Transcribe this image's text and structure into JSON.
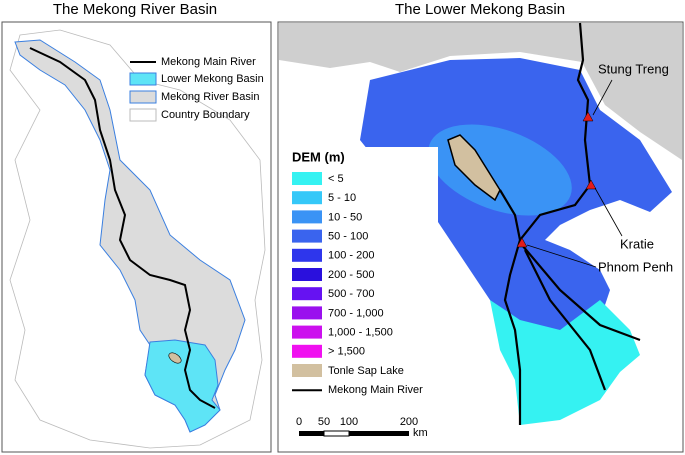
{
  "left_panel": {
    "title": "The Mekong River Basin",
    "legend": [
      "Mekong Main River",
      "Lower Mekong Basin",
      "Mekong River Basin",
      "Country Boundary"
    ]
  },
  "right_panel": {
    "title": "The Lower Mekong Basin",
    "places": [
      "Stung Treng",
      "Kratie",
      "Phnom Penh"
    ],
    "legend_title": "DEM (m)",
    "dem_classes": [
      {
        "label": "< 5",
        "color": "#35f2f2"
      },
      {
        "label": "5 - 10",
        "color": "#35c8f8"
      },
      {
        "label": "10 - 50",
        "color": "#3a93f5"
      },
      {
        "label": "50 - 100",
        "color": "#3a64ee"
      },
      {
        "label": "100 - 200",
        "color": "#2e36ec"
      },
      {
        "label": "200 - 500",
        "color": "#2a10dd"
      },
      {
        "label": "500 - 700",
        "color": "#6612f2"
      },
      {
        "label": "700 - 1,000",
        "color": "#9a10ee"
      },
      {
        "label": "1,000 - 1,500",
        "color": "#cc10ee"
      },
      {
        "label": "> 1,500",
        "color": "#f010f0"
      }
    ],
    "lake_label": "Tonle Sap Lake",
    "river_label": "Mekong Main River",
    "scale_labels": [
      "0",
      "50",
      "100",
      "200"
    ],
    "scale_unit": "km"
  }
}
